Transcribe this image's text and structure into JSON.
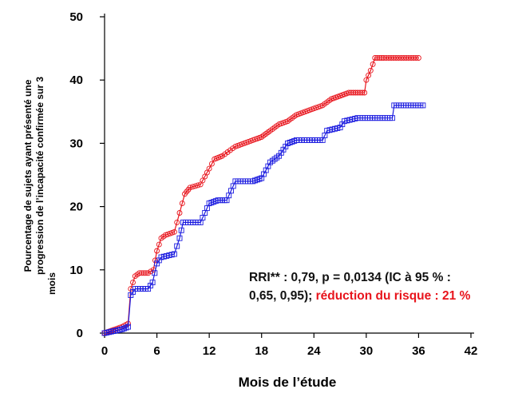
{
  "chart_data": {
    "type": "line",
    "title": "",
    "xlabel": "Mois de l’étude",
    "ylabel_lines": [
      "Pourcentage de sujets ayant présenté une",
      "progression de l’incapacité confirmée sur 3",
      "mois"
    ],
    "xlim": [
      0,
      42
    ],
    "ylim": [
      0,
      50
    ],
    "xticks": [
      "0",
      "6",
      "12",
      "18",
      "24",
      "30",
      "36",
      "42"
    ],
    "yticks": [
      "0",
      "10",
      "20",
      "30",
      "40",
      "50"
    ],
    "grid": false,
    "colors": {
      "red": "#e8141c",
      "blue": "#1a1adf"
    },
    "series": [
      {
        "color": "#e8141c",
        "marker": "circle",
        "points": [
          [
            0,
            0
          ],
          [
            1,
            0.5
          ],
          [
            2,
            1
          ],
          [
            2.7,
            1.5
          ],
          [
            3,
            7
          ],
          [
            3.5,
            9
          ],
          [
            4,
            9.5
          ],
          [
            5,
            9.5
          ],
          [
            5.6,
            10
          ],
          [
            6,
            13
          ],
          [
            6.5,
            15
          ],
          [
            7,
            15.5
          ],
          [
            8,
            16
          ],
          [
            8.6,
            19
          ],
          [
            9.2,
            22
          ],
          [
            9.8,
            23
          ],
          [
            11,
            23.5
          ],
          [
            12,
            26
          ],
          [
            12.6,
            27.5
          ],
          [
            13.5,
            28
          ],
          [
            15,
            29.5
          ],
          [
            16,
            30
          ],
          [
            17,
            30.5
          ],
          [
            18,
            31
          ],
          [
            19,
            32
          ],
          [
            20,
            33
          ],
          [
            21,
            33.5
          ],
          [
            22,
            34.5
          ],
          [
            23,
            35
          ],
          [
            24,
            35.5
          ],
          [
            25,
            36
          ],
          [
            26,
            37
          ],
          [
            27,
            37.5
          ],
          [
            28,
            38
          ],
          [
            29.8,
            38
          ],
          [
            30,
            40
          ],
          [
            30.5,
            41.5
          ],
          [
            31,
            43.5
          ],
          [
            32,
            43.5
          ],
          [
            36,
            43.5
          ]
        ]
      },
      {
        "color": "#1a1adf",
        "marker": "square",
        "points": [
          [
            0,
            0
          ],
          [
            1,
            0.3
          ],
          [
            2,
            0.6
          ],
          [
            2.7,
            1
          ],
          [
            3,
            6
          ],
          [
            3.5,
            7
          ],
          [
            5,
            7
          ],
          [
            5.5,
            8
          ],
          [
            6,
            11
          ],
          [
            6.5,
            12
          ],
          [
            8,
            12.5
          ],
          [
            8.6,
            15
          ],
          [
            9,
            17.5
          ],
          [
            11,
            17.5
          ],
          [
            11.5,
            19
          ],
          [
            12,
            20.5
          ],
          [
            13,
            21
          ],
          [
            14,
            21
          ],
          [
            14.5,
            22.5
          ],
          [
            15,
            24
          ],
          [
            17,
            24
          ],
          [
            18,
            24.5
          ],
          [
            19,
            27
          ],
          [
            20,
            28
          ],
          [
            21,
            30
          ],
          [
            22,
            30.5
          ],
          [
            25,
            30.5
          ],
          [
            25.5,
            32
          ],
          [
            27,
            32.5
          ],
          [
            27.5,
            33.5
          ],
          [
            29,
            34
          ],
          [
            33,
            34
          ],
          [
            33.2,
            36
          ],
          [
            34,
            36
          ],
          [
            36.5,
            36
          ]
        ]
      }
    ],
    "annotation": {
      "line1": "RRI** : 0,79, p = 0,0134 (IC à 95 % :",
      "line2_black": "0,65, 0,95); ",
      "line2_red": "réduction du risque : 21 %"
    }
  }
}
